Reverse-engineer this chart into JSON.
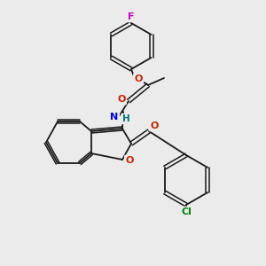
{
  "background_color": "#ebebeb",
  "bond_color": "#1a1a1a",
  "atom_colors": {
    "F": "#cc00cc",
    "O": "#cc2200",
    "N": "#0000ee",
    "H": "#007777",
    "Cl": "#008800"
  },
  "figsize": [
    3.0,
    3.0
  ],
  "dpi": 100
}
